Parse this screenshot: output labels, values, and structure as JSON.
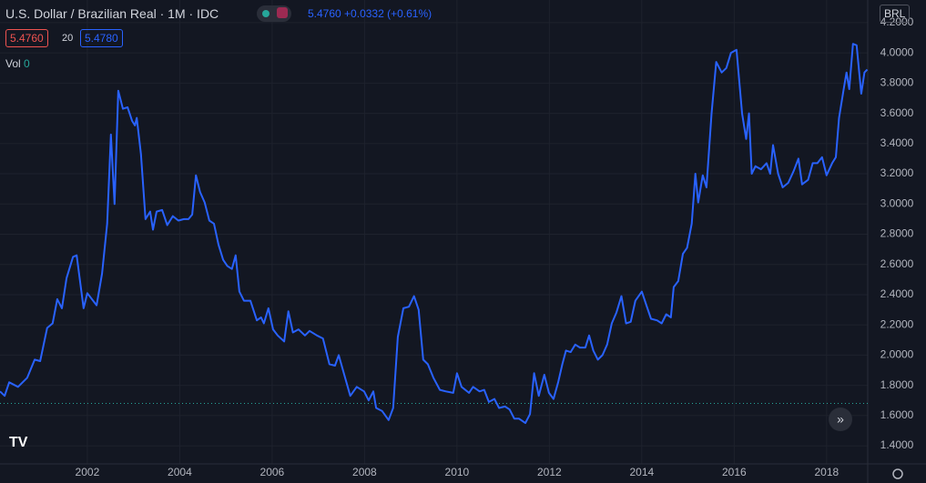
{
  "header": {
    "symbol": "U.S. Dollar / Brazilian Real · 1M · IDC",
    "last": "5.4760",
    "change": "+0.0332",
    "change_pct": "(+0.61%)",
    "bid": "5.4760",
    "spread": "20",
    "ask": "5.4780",
    "vol_label": "Vol",
    "vol_value": "0",
    "currency": "BRL"
  },
  "chart_data": {
    "type": "line",
    "x": [
      2000.11,
      2000.21,
      2000.31,
      2000.5,
      2000.7,
      2000.86,
      2000.98,
      2001.13,
      2001.25,
      2001.35,
      2001.45,
      2001.55,
      2001.69,
      2001.77,
      2001.92,
      2002.0,
      2002.2,
      2002.32,
      2002.43,
      2002.51,
      2002.59,
      2002.67,
      2002.77,
      2002.87,
      2002.97,
      2003.03,
      2003.07,
      2003.16,
      2003.26,
      2003.36,
      2003.42,
      2003.5,
      2003.62,
      2003.73,
      2003.85,
      2003.97,
      2004.09,
      2004.19,
      2004.27,
      2004.35,
      2004.44,
      2004.54,
      2004.64,
      2004.74,
      2004.84,
      2004.94,
      2005.03,
      2005.13,
      2005.21,
      2005.29,
      2005.39,
      2005.53,
      2005.67,
      2005.76,
      2005.82,
      2005.92,
      2006.02,
      2006.12,
      2006.26,
      2006.35,
      2006.45,
      2006.57,
      2006.71,
      2006.81,
      2006.97,
      2007.1,
      2007.24,
      2007.36,
      2007.44,
      2007.56,
      2007.69,
      2007.83,
      2007.99,
      2008.09,
      2008.19,
      2008.25,
      2008.38,
      2008.52,
      2008.62,
      2008.72,
      2008.84,
      2008.96,
      2009.07,
      2009.17,
      2009.27,
      2009.37,
      2009.49,
      2009.63,
      2009.76,
      2009.92,
      2010.0,
      2010.1,
      2010.26,
      2010.35,
      2010.49,
      2010.59,
      2010.69,
      2010.81,
      2010.91,
      2011.04,
      2011.14,
      2011.24,
      2011.34,
      2011.48,
      2011.58,
      2011.67,
      2011.77,
      2011.89,
      2011.99,
      2012.09,
      2012.19,
      2012.28,
      2012.36,
      2012.46,
      2012.56,
      2012.66,
      2012.78,
      2012.86,
      2012.95,
      2013.05,
      2013.15,
      2013.25,
      2013.35,
      2013.45,
      2013.56,
      2013.66,
      2013.76,
      2013.86,
      2014.0,
      2014.1,
      2014.2,
      2014.33,
      2014.43,
      2014.53,
      2014.63,
      2014.69,
      2014.79,
      2014.89,
      2014.98,
      2015.08,
      2015.16,
      2015.22,
      2015.32,
      2015.4,
      2015.51,
      2015.61,
      2015.73,
      2015.83,
      2015.93,
      2016.05,
      2016.17,
      2016.26,
      2016.32,
      2016.38,
      2016.46,
      2016.58,
      2016.7,
      2016.78,
      2016.84,
      2016.95,
      2017.05,
      2017.17,
      2017.29,
      2017.39,
      2017.47,
      2017.6,
      2017.7,
      2017.8,
      2017.9,
      2018.0,
      2018.12,
      2018.2,
      2018.27,
      2018.37,
      2018.43,
      2018.49,
      2018.57,
      2018.65,
      2018.75,
      2018.82,
      2018.88
    ],
    "series": [
      {
        "name": "USDBRL",
        "color": "#2962ff",
        "values": [
          1.76,
          1.73,
          1.82,
          1.79,
          1.85,
          1.97,
          1.96,
          2.18,
          2.21,
          2.37,
          2.31,
          2.51,
          2.65,
          2.66,
          2.31,
          2.41,
          2.33,
          2.54,
          2.87,
          3.46,
          3.0,
          3.75,
          3.63,
          3.64,
          3.55,
          3.52,
          3.57,
          3.33,
          2.9,
          2.95,
          2.83,
          2.95,
          2.96,
          2.86,
          2.92,
          2.89,
          2.9,
          2.9,
          2.93,
          3.19,
          3.08,
          3.01,
          2.89,
          2.87,
          2.73,
          2.63,
          2.59,
          2.57,
          2.66,
          2.42,
          2.36,
          2.36,
          2.23,
          2.25,
          2.21,
          2.31,
          2.17,
          2.13,
          2.09,
          2.29,
          2.15,
          2.17,
          2.13,
          2.16,
          2.13,
          2.11,
          1.94,
          1.93,
          2.0,
          1.87,
          1.73,
          1.79,
          1.76,
          1.7,
          1.76,
          1.65,
          1.63,
          1.57,
          1.65,
          2.12,
          2.31,
          2.32,
          2.39,
          2.3,
          1.97,
          1.94,
          1.85,
          1.77,
          1.76,
          1.75,
          1.88,
          1.79,
          1.75,
          1.79,
          1.76,
          1.77,
          1.69,
          1.71,
          1.65,
          1.66,
          1.64,
          1.58,
          1.58,
          1.55,
          1.61,
          1.88,
          1.73,
          1.87,
          1.75,
          1.71,
          1.82,
          1.94,
          2.03,
          2.02,
          2.07,
          2.05,
          2.05,
          2.13,
          2.03,
          1.97,
          2.0,
          2.07,
          2.21,
          2.28,
          2.39,
          2.21,
          2.22,
          2.36,
          2.42,
          2.33,
          2.24,
          2.23,
          2.21,
          2.27,
          2.25,
          2.45,
          2.49,
          2.67,
          2.71,
          2.87,
          3.2,
          3.01,
          3.19,
          3.11,
          3.6,
          3.94,
          3.87,
          3.9,
          4.0,
          4.02,
          3.6,
          3.43,
          3.6,
          3.2,
          3.25,
          3.23,
          3.27,
          3.2,
          3.39,
          3.2,
          3.11,
          3.14,
          3.22,
          3.3,
          3.13,
          3.16,
          3.27,
          3.27,
          3.31,
          3.19,
          3.27,
          3.31,
          3.57,
          3.76,
          3.87,
          3.76,
          4.06,
          4.05,
          3.73,
          3.87,
          3.89
        ]
      }
    ],
    "xlim": [
      2000.11,
      2018.89
    ],
    "xticks": [
      2002,
      2004,
      2006,
      2008,
      2010,
      2012,
      2014,
      2016,
      2018
    ],
    "ylim": [
      1.28,
      4.35
    ],
    "yticks": [
      {
        "value": 1.4,
        "label": "1.4000"
      },
      {
        "value": 1.6,
        "label": "1.6000"
      },
      {
        "value": 1.8,
        "label": "1.8000"
      },
      {
        "value": 2.0,
        "label": "2.0000"
      },
      {
        "value": 2.2,
        "label": "2.2000"
      },
      {
        "value": 2.4,
        "label": "2.4000"
      },
      {
        "value": 2.6,
        "label": "2.6000"
      },
      {
        "value": 2.8,
        "label": "2.8000"
      },
      {
        "value": 3.0,
        "label": "3.0000"
      },
      {
        "value": 3.2,
        "label": "3.2000"
      },
      {
        "value": 3.4,
        "label": "3.4000"
      },
      {
        "value": 3.6,
        "label": "3.6000"
      },
      {
        "value": 3.8,
        "label": "3.8000"
      },
      {
        "value": 4.0,
        "label": "4.0000"
      },
      {
        "value": 4.2,
        "label": "4.2000"
      }
    ],
    "hline": 1.68,
    "grid": true
  }
}
